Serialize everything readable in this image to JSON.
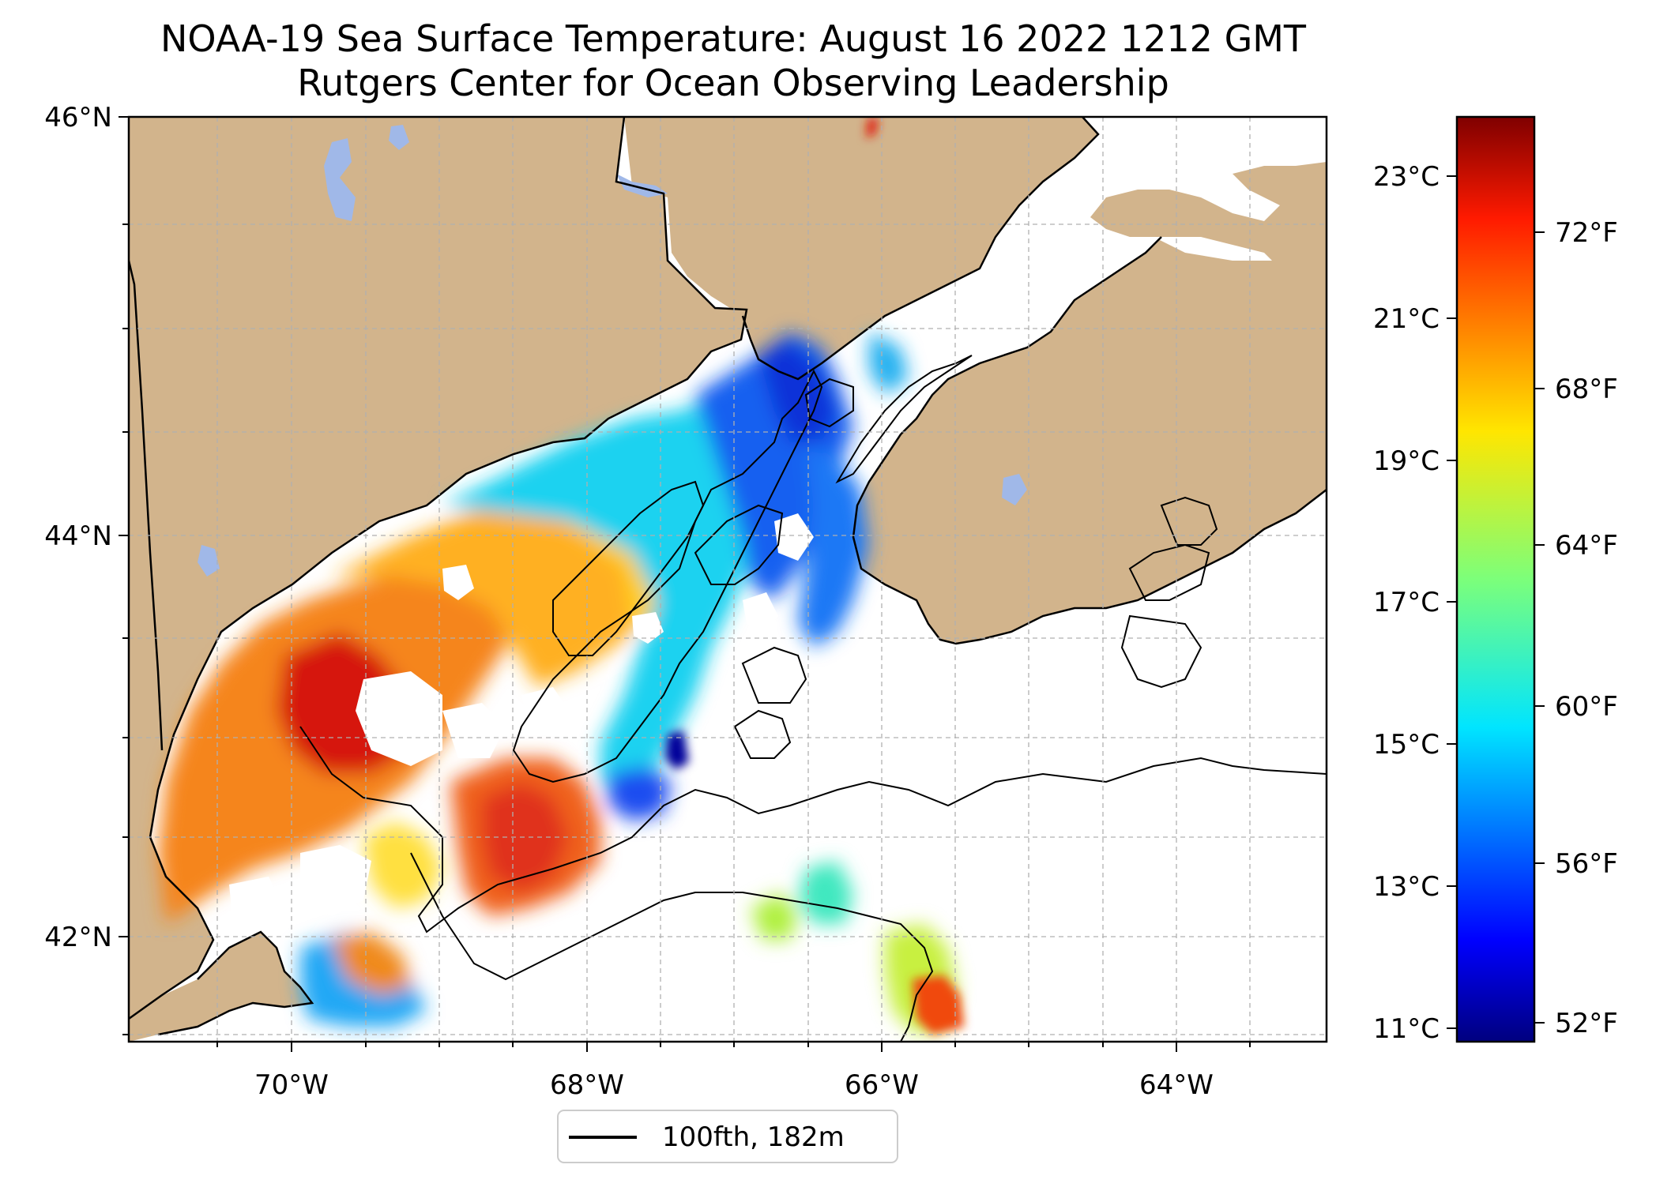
{
  "map": {
    "title": "NOAA-19 Sea Surface Temperature: August 16 2022 1212 GMT",
    "subtitle": "Rutgers Center for Ocean Observing Leadership",
    "lat_labels": [
      "46°N",
      "44°N",
      "42°N"
    ],
    "lon_labels": [
      "70°W",
      "68°W",
      "66°W",
      "64°W"
    ],
    "lat_range": [
      41.5,
      46
    ],
    "lon_range": [
      -71.2,
      -63.1
    ],
    "grid": true,
    "legend": {
      "label": "100fth, 182m",
      "placement": "bottom-center"
    },
    "land_color": "#d2b48c",
    "lake_color": "#a0b8e8",
    "ocean_color": "#ffffff",
    "colorbar": {
      "colormap": "jet",
      "celsius_labels": [
        "23°C",
        "21°C",
        "19°C",
        "17°C",
        "15°C",
        "13°C",
        "11°C"
      ],
      "fahrenheit_labels": [
        "72°F",
        "68°F",
        "64°F",
        "60°F",
        "56°F",
        "52°F"
      ],
      "range_fahrenheit": [
        51,
        75
      ]
    }
  }
}
